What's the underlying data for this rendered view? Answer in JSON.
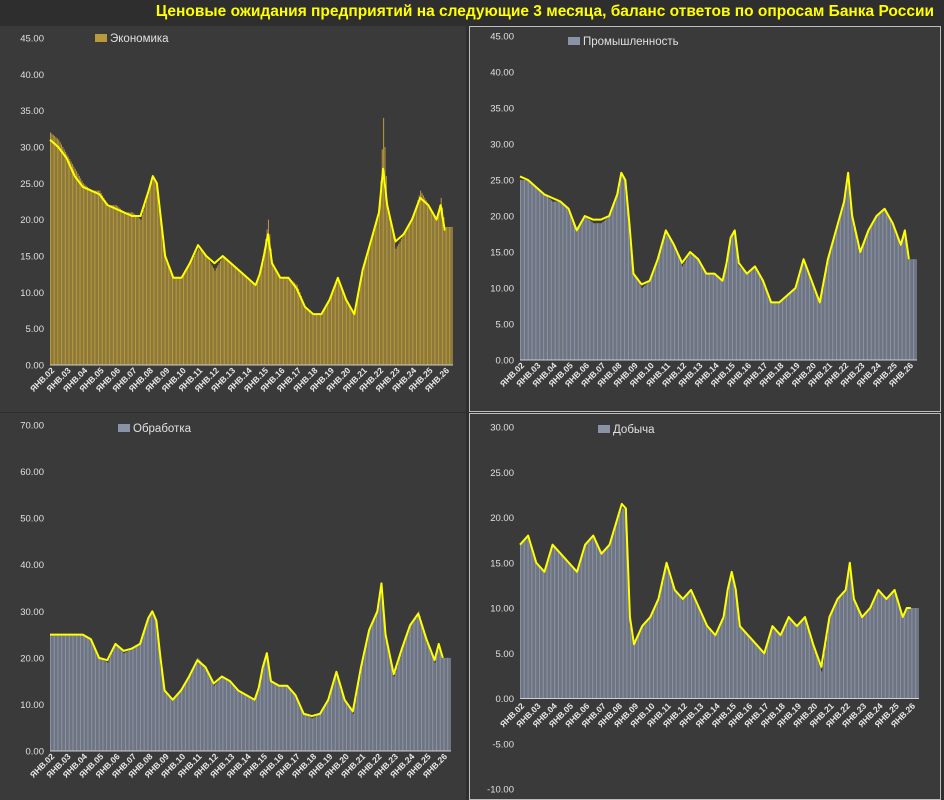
{
  "title": "Ценовые ожидания предприятий на следующие 3 месяца, баланс ответов по опросам Банка России",
  "colors": {
    "background": "#2e2e2e",
    "panel": "#3a3a3a",
    "title": "#ffff00",
    "smooth_line": "#ffff00",
    "economy_bars": "#b89a3c",
    "sector_bars": "#8a93a6"
  },
  "x_tick_labels": [
    "ЯНВ.02",
    "ЯНВ.03",
    "ЯНВ.04",
    "ЯНВ.05",
    "ЯНВ.06",
    "ЯНВ.07",
    "ЯНВ.08",
    "ЯНВ.09",
    "ЯНВ.10",
    "ЯНВ.11",
    "ЯНВ.12",
    "ЯНВ.13",
    "ЯНВ.14",
    "ЯНВ.15",
    "ЯНВ.16",
    "ЯНВ.17",
    "ЯНВ.18",
    "ЯНВ.19",
    "ЯНВ.20",
    "ЯНВ.21",
    "ЯНВ.22",
    "ЯНВ.23",
    "ЯНВ.24",
    "ЯНВ.25",
    "ЯНВ.26"
  ],
  "chart_data": [
    {
      "type": "bar",
      "legend": "Экономика",
      "ylim": [
        0,
        45
      ],
      "yticks": [
        "0.00",
        "5.00",
        "10.00",
        "15.00",
        "20.00",
        "25.00",
        "30.00",
        "35.00",
        "40.00",
        "45.00"
      ],
      "grid": false,
      "legend_position": "top-left",
      "series_color": "economy_bars",
      "x": [
        "2002",
        "2002.5",
        "2003",
        "2003.5",
        "2004",
        "2004.5",
        "2005",
        "2005.5",
        "2006",
        "2006.5",
        "2007",
        "2007.5",
        "2008",
        "2008.25",
        "2008.5",
        "2008.75",
        "2009",
        "2009.5",
        "2010",
        "2010.5",
        "2011",
        "2011.5",
        "2012",
        "2012.5",
        "2013",
        "2013.5",
        "2014",
        "2014.5",
        "2014.75",
        "2015",
        "2015.25",
        "2015.5",
        "2016",
        "2016.5",
        "2017",
        "2017.5",
        "2018",
        "2018.5",
        "2019",
        "2019.5",
        "2020",
        "2020.5",
        "2021",
        "2021.5",
        "2022",
        "2022.25",
        "2022.5",
        "2023",
        "2023.5",
        "2024",
        "2024.5",
        "2025",
        "2025.5",
        "2025.75",
        "2026"
      ],
      "values": [
        32,
        31,
        29,
        27,
        25,
        24,
        24,
        22,
        22,
        21,
        21,
        20,
        24,
        26,
        25,
        19,
        15,
        12,
        12,
        14,
        16,
        15,
        13,
        15,
        14,
        13,
        12,
        11,
        13,
        16,
        20,
        14,
        12,
        12,
        11,
        8,
        7,
        7,
        9,
        12,
        9,
        7,
        13,
        17,
        21,
        34,
        22,
        16,
        18,
        20,
        24,
        22,
        20,
        23,
        19
      ],
      "smooth": [
        31,
        30,
        28.5,
        26,
        24.5,
        24,
        23.5,
        22,
        21.5,
        21,
        20.5,
        20.5,
        24,
        26,
        25,
        20,
        15,
        12,
        12,
        14,
        16.5,
        15,
        14,
        15,
        14,
        13,
        12,
        11,
        12.5,
        15,
        18,
        14,
        12,
        12,
        10.5,
        8,
        7,
        7,
        9,
        12,
        9,
        7,
        13,
        17,
        21,
        27,
        22,
        17,
        18,
        20,
        23,
        22,
        20,
        22,
        18.5
      ]
    },
    {
      "type": "bar",
      "legend": "Промышленность",
      "ylim": [
        0,
        45
      ],
      "yticks": [
        "0.00",
        "5.00",
        "10.00",
        "15.00",
        "20.00",
        "25.00",
        "30.00",
        "35.00",
        "40.00",
        "45.00"
      ],
      "grid": false,
      "legend_position": "top-left",
      "series_color": "sector_bars",
      "x": [
        "2002",
        "2002.5",
        "2003",
        "2003.5",
        "2004",
        "2004.5",
        "2005",
        "2005.5",
        "2006",
        "2006.5",
        "2007",
        "2007.5",
        "2008",
        "2008.25",
        "2008.5",
        "2008.75",
        "2009",
        "2009.5",
        "2010",
        "2010.5",
        "2011",
        "2011.5",
        "2012",
        "2012.5",
        "2013",
        "2013.5",
        "2014",
        "2014.5",
        "2014.75",
        "2015",
        "2015.25",
        "2015.5",
        "2016",
        "2016.5",
        "2017",
        "2017.5",
        "2018",
        "2018.5",
        "2019",
        "2019.5",
        "2020",
        "2020.5",
        "2021",
        "2021.5",
        "2022",
        "2022.25",
        "2022.5",
        "2023",
        "2023.5",
        "2024",
        "2024.5",
        "2025",
        "2025.5",
        "2025.75",
        "2026"
      ],
      "values": [
        25,
        25,
        24,
        23,
        22,
        22,
        21,
        18,
        20,
        19,
        19,
        20,
        23,
        26,
        25,
        18,
        12,
        10,
        11,
        14,
        18,
        16,
        13,
        15,
        14,
        12,
        12,
        11,
        14,
        17,
        18,
        13,
        12,
        13,
        11,
        8,
        8,
        9,
        10,
        14,
        11,
        8,
        14,
        18,
        22,
        26,
        20,
        15,
        18,
        20,
        21,
        19,
        16,
        18,
        14
      ],
      "smooth": [
        25.5,
        25,
        24,
        23,
        22.5,
        22,
        21,
        18,
        20,
        19.5,
        19.5,
        20,
        23,
        26,
        25,
        19,
        12,
        10.5,
        11,
        14,
        18,
        16,
        13.5,
        15,
        14,
        12,
        12,
        11,
        13.5,
        17,
        18,
        13.5,
        12,
        13,
        11,
        8,
        8,
        9,
        10,
        14,
        11,
        8,
        14,
        18,
        22,
        26,
        20,
        15,
        18,
        20,
        21,
        19,
        16,
        18,
        14
      ]
    },
    {
      "type": "bar",
      "legend": "Обработка",
      "ylim": [
        0,
        70
      ],
      "yticks": [
        "0.00",
        "10.00",
        "20.00",
        "30.00",
        "40.00",
        "50.00",
        "60.00",
        "70.00"
      ],
      "grid": false,
      "legend_position": "top-left",
      "series_color": "sector_bars",
      "x": [
        "2002",
        "2002.5",
        "2003",
        "2003.5",
        "2004",
        "2004.5",
        "2005",
        "2005.5",
        "2006",
        "2006.5",
        "2007",
        "2007.5",
        "2008",
        "2008.25",
        "2008.5",
        "2008.75",
        "2009",
        "2009.5",
        "2010",
        "2010.5",
        "2011",
        "2011.5",
        "2012",
        "2012.5",
        "2013",
        "2013.5",
        "2014",
        "2014.5",
        "2014.75",
        "2015",
        "2015.25",
        "2015.5",
        "2016",
        "2016.5",
        "2017",
        "2017.5",
        "2018",
        "2018.5",
        "2019",
        "2019.5",
        "2020",
        "2020.5",
        "2021",
        "2021.5",
        "2022",
        "2022.25",
        "2022.5",
        "2023",
        "2023.5",
        "2024",
        "2024.5",
        "2025",
        "2025.5",
        "2025.75",
        "2026"
      ],
      "values": [
        25,
        25,
        25,
        25,
        25,
        24,
        20,
        19,
        23,
        21,
        22,
        23,
        29,
        30,
        28,
        20,
        13,
        11,
        13,
        16,
        20,
        18,
        14,
        16,
        15,
        13,
        12,
        11,
        14,
        18,
        21,
        15,
        14,
        14,
        12,
        8,
        7,
        8,
        11,
        17,
        11,
        8,
        18,
        26,
        30,
        36,
        25,
        16,
        22,
        27,
        30,
        24,
        19,
        23,
        20
      ],
      "smooth": [
        25,
        25,
        25,
        25,
        25,
        24,
        20,
        19.5,
        23,
        21.5,
        22,
        23,
        28.5,
        30,
        28,
        20,
        13,
        11,
        13,
        16,
        19.5,
        18,
        14.5,
        16,
        15,
        13,
        12,
        11,
        13.5,
        18,
        21,
        15,
        14,
        14,
        12,
        8,
        7.5,
        8,
        11,
        17,
        11,
        8.5,
        18,
        26,
        30,
        36,
        25,
        16.5,
        22,
        27,
        29.5,
        24,
        19.5,
        23,
        20
      ]
    },
    {
      "type": "bar",
      "legend": "Добыча",
      "ylim": [
        -10,
        30
      ],
      "yticks": [
        "-10.00",
        "-5.00",
        "0.00",
        "5.00",
        "10.00",
        "15.00",
        "20.00",
        "25.00",
        "30.00"
      ],
      "grid": false,
      "legend_position": "top-left",
      "series_color": "sector_bars",
      "x": [
        "2002",
        "2002.5",
        "2003",
        "2003.5",
        "2004",
        "2004.5",
        "2005",
        "2005.5",
        "2006",
        "2006.5",
        "2007",
        "2007.5",
        "2008",
        "2008.25",
        "2008.5",
        "2008.75",
        "2009",
        "2009.5",
        "2010",
        "2010.5",
        "2011",
        "2011.5",
        "2012",
        "2012.5",
        "2013",
        "2013.5",
        "2014",
        "2014.5",
        "2014.75",
        "2015",
        "2015.25",
        "2015.5",
        "2016",
        "2016.5",
        "2017",
        "2017.5",
        "2018",
        "2018.5",
        "2019",
        "2019.5",
        "2020",
        "2020.5",
        "2021",
        "2021.5",
        "2022",
        "2022.25",
        "2022.5",
        "2023",
        "2023.5",
        "2024",
        "2024.5",
        "2025",
        "2025.5",
        "2025.75",
        "2026"
      ],
      "values": [
        17,
        18,
        15,
        14,
        17,
        16,
        15,
        14,
        17,
        18,
        16,
        17,
        20,
        21,
        21,
        8,
        6,
        8,
        9,
        11,
        15,
        12,
        11,
        12,
        10,
        8,
        7,
        9,
        12,
        14,
        12,
        8,
        7,
        6,
        5,
        8,
        7,
        9,
        8,
        9,
        6,
        3,
        9,
        11,
        12,
        15,
        11,
        9,
        10,
        12,
        11,
        12,
        9,
        10,
        10
      ],
      "smooth": [
        17,
        18,
        15,
        14,
        17,
        16,
        15,
        14,
        17,
        18,
        16,
        17,
        20,
        21.5,
        21,
        9,
        6,
        8,
        9,
        11,
        15,
        12,
        11,
        12,
        10,
        8,
        7,
        9,
        12,
        14,
        12,
        8,
        7,
        6,
        5,
        8,
        7,
        9,
        8,
        9,
        6,
        3.5,
        9,
        11,
        12,
        15,
        11,
        9,
        10,
        12,
        11,
        12,
        9,
        10,
        10
      ]
    }
  ]
}
